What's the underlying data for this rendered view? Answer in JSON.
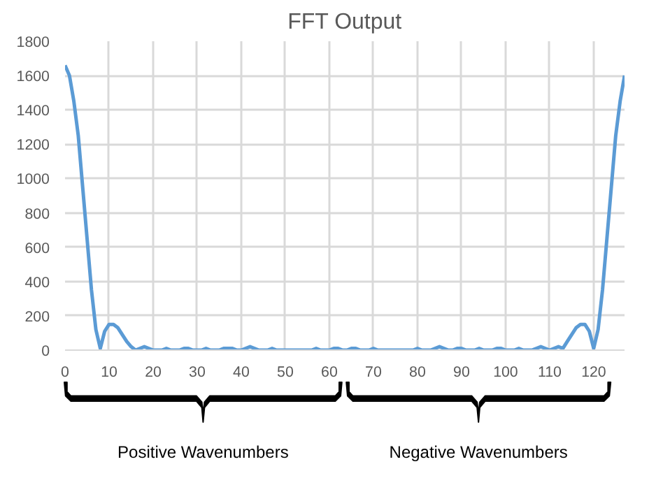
{
  "chart_data": {
    "type": "line",
    "title": "FFT Output",
    "x": [
      0,
      1,
      2,
      3,
      4,
      5,
      6,
      7,
      8,
      9,
      10,
      11,
      12,
      13,
      14,
      15,
      16,
      17,
      18,
      19,
      20,
      21,
      22,
      23,
      24,
      25,
      26,
      27,
      28,
      29,
      30,
      31,
      32,
      33,
      34,
      35,
      36,
      37,
      38,
      39,
      40,
      41,
      42,
      43,
      44,
      45,
      46,
      47,
      48,
      49,
      50,
      51,
      52,
      53,
      54,
      55,
      56,
      57,
      58,
      59,
      60,
      61,
      62,
      63,
      64,
      65,
      66,
      67,
      68,
      69,
      70,
      71,
      72,
      73,
      74,
      75,
      76,
      77,
      78,
      79,
      80,
      81,
      82,
      83,
      84,
      85,
      86,
      87,
      88,
      89,
      90,
      91,
      92,
      93,
      94,
      95,
      96,
      97,
      98,
      99,
      100,
      101,
      102,
      103,
      104,
      105,
      106,
      107,
      108,
      109,
      110,
      111,
      112,
      113,
      114,
      115,
      116,
      117,
      118,
      119,
      120,
      121,
      122,
      123,
      124,
      125,
      126,
      127
    ],
    "series": [
      {
        "color": "#5b9bd5",
        "values": [
          1660,
          1600,
          1450,
          1250,
          950,
          650,
          350,
          120,
          10,
          110,
          150,
          150,
          130,
          90,
          50,
          20,
          0,
          10,
          20,
          10,
          0,
          0,
          0,
          10,
          0,
          0,
          0,
          10,
          10,
          0,
          0,
          0,
          10,
          0,
          0,
          0,
          10,
          10,
          10,
          0,
          0,
          10,
          20,
          10,
          0,
          0,
          0,
          10,
          0,
          0,
          0,
          0,
          0,
          0,
          0,
          0,
          0,
          10,
          0,
          0,
          0,
          10,
          10,
          0,
          0,
          10,
          10,
          0,
          0,
          0,
          10,
          0,
          0,
          0,
          0,
          0,
          0,
          0,
          0,
          0,
          10,
          0,
          0,
          0,
          10,
          20,
          10,
          0,
          0,
          10,
          10,
          0,
          0,
          0,
          10,
          0,
          0,
          0,
          10,
          10,
          0,
          0,
          0,
          10,
          0,
          0,
          0,
          10,
          20,
          10,
          0,
          10,
          20,
          10,
          50,
          90,
          130,
          150,
          150,
          110,
          10,
          120,
          350,
          650,
          950,
          1250,
          1450,
          1600
        ]
      }
    ],
    "xlim": [
      0,
      127
    ],
    "xticks": [
      0,
      10,
      20,
      30,
      40,
      50,
      60,
      70,
      80,
      90,
      100,
      110,
      120
    ],
    "ylim": [
      0,
      1800
    ],
    "yticks": [
      0,
      200,
      400,
      600,
      800,
      1000,
      1200,
      1400,
      1600,
      1800
    ],
    "grid": true,
    "marker": "none",
    "line_style": "solid",
    "annotations": [
      "Positive Wavenumbers",
      "Negative Wavenumbers"
    ]
  }
}
